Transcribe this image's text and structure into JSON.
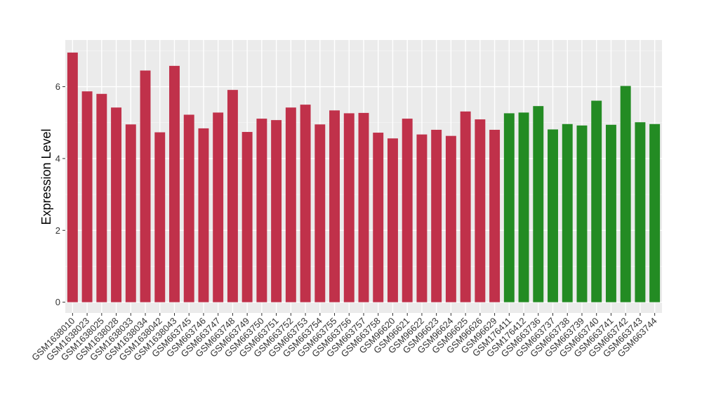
{
  "chart_data": {
    "type": "bar",
    "ylabel": "Expression Level",
    "xlabel": "",
    "ylim": [
      -0.3,
      7.3
    ],
    "yticks": [
      0,
      2,
      4,
      6
    ],
    "grid": true,
    "panel_background": "#EBEBEB",
    "categories": [
      "GSM1638010",
      "GSM1638023",
      "GSM1638025",
      "GSM1638028",
      "GSM1638033",
      "GSM1638034",
      "GSM1638042",
      "GSM1638043",
      "GSM663745",
      "GSM663746",
      "GSM663747",
      "GSM663748",
      "GSM663749",
      "GSM663750",
      "GSM663751",
      "GSM663752",
      "GSM663753",
      "GSM663754",
      "GSM663755",
      "GSM663756",
      "GSM663757",
      "GSM663758",
      "GSM96620",
      "GSM96621",
      "GSM96622",
      "GSM96623",
      "GSM96624",
      "GSM96625",
      "GSM96626",
      "GSM96629",
      "GSM176411",
      "GSM176412",
      "GSM663736",
      "GSM663737",
      "GSM663738",
      "GSM663739",
      "GSM663740",
      "GSM663741",
      "GSM663742",
      "GSM663743",
      "GSM663744"
    ],
    "values": [
      6.95,
      5.87,
      5.8,
      5.42,
      4.95,
      6.45,
      4.73,
      6.58,
      5.22,
      4.84,
      5.28,
      5.91,
      4.74,
      5.11,
      5.07,
      5.42,
      5.5,
      4.95,
      5.34,
      5.26,
      5.27,
      4.72,
      4.56,
      5.11,
      4.67,
      4.8,
      4.63,
      5.31,
      5.09,
      4.8,
      5.26,
      5.28,
      5.46,
      4.81,
      4.96,
      4.92,
      5.61,
      4.94,
      6.02,
      5.01,
      4.96
    ],
    "groups": [
      "a",
      "a",
      "a",
      "a",
      "a",
      "a",
      "a",
      "a",
      "a",
      "a",
      "a",
      "a",
      "a",
      "a",
      "a",
      "a",
      "a",
      "a",
      "a",
      "a",
      "a",
      "a",
      "a",
      "a",
      "a",
      "a",
      "a",
      "a",
      "a",
      "a",
      "b",
      "b",
      "b",
      "b",
      "b",
      "b",
      "b",
      "b",
      "b",
      "b",
      "b"
    ],
    "group_colors": {
      "a": "#C0314A",
      "b": "#238B23"
    }
  }
}
